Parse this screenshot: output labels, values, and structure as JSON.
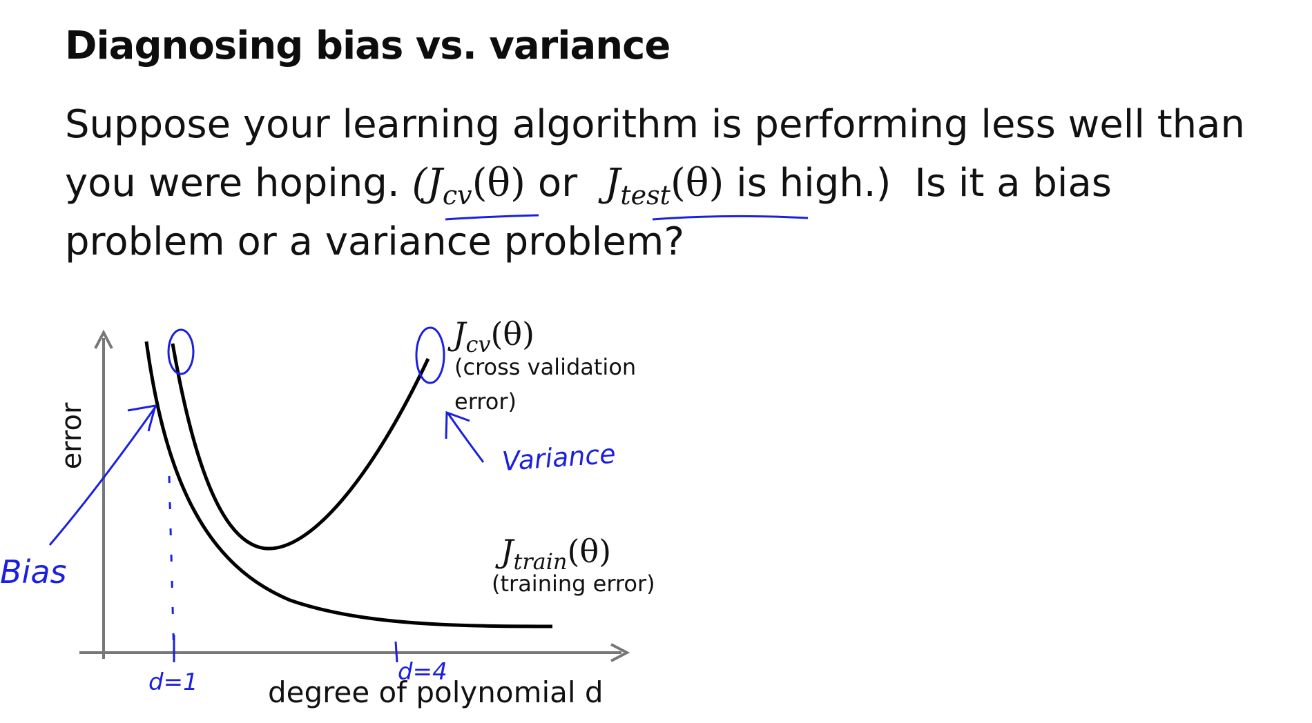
{
  "title": "Diagnosing bias vs. variance",
  "paragraph": {
    "line1": "Suppose your learning algorithm is performing less well than",
    "line2_pre": "you were hoping.",
    "jcv": {
      "main": "J",
      "sub": "cv",
      "arg": "(θ)"
    },
    "or_word": "or",
    "jtest": {
      "main": "J",
      "sub": "test",
      "arg": "(θ)"
    },
    "line2_post": "is high.)",
    "line2_question": "Is it a bias",
    "line3": "problem or a variance problem?"
  },
  "chart": {
    "y_axis_label": "error",
    "x_axis_label": "degree of polynomial d",
    "cv_curve": {
      "name_main": "J",
      "name_sub": "cv",
      "name_arg": "(θ)",
      "desc_line1": "(cross validation",
      "desc_line2": "error)"
    },
    "train_curve": {
      "name_main": "J",
      "name_sub": "train",
      "name_arg": "(θ)",
      "desc": "(training error)"
    }
  },
  "annotations": {
    "bias": "Bias",
    "variance": "Variance",
    "d1": "d=1",
    "d4": "d=4",
    "color": "#1a1fe0"
  },
  "colors": {
    "text": "#111111",
    "axis": "#777777",
    "curve": "#000000",
    "handwriting": "#1a1fe0"
  }
}
